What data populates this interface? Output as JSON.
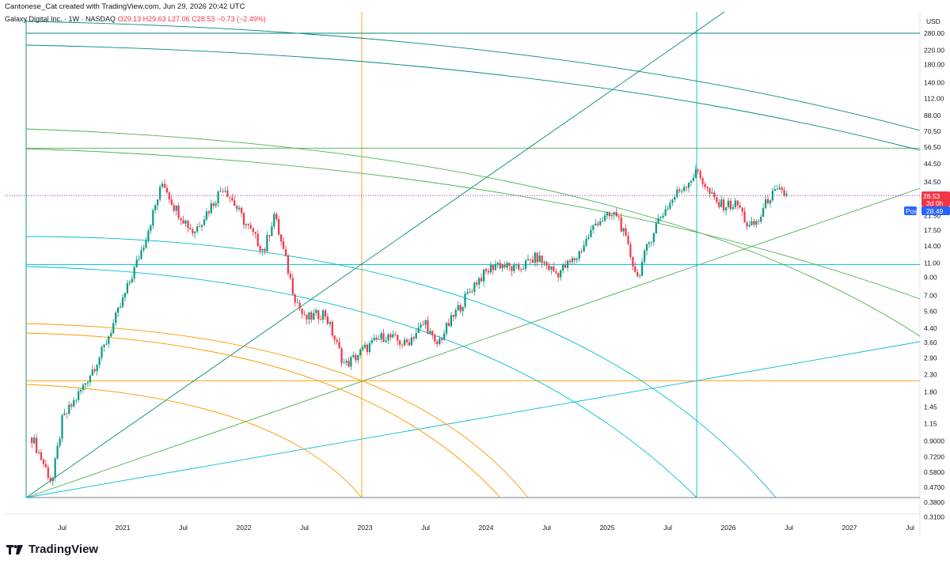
{
  "header": {
    "text": "Cantonese_Cat created with TradingView.com, Jun 29, 2026 20:42 UTC"
  },
  "legend": {
    "symbol": "Galaxy Digital Inc. · 1W · NASDAQ",
    "open": "O29.13",
    "high": "H29.63",
    "low": "L27.06",
    "close": "C28.53",
    "change": "−0.73 (−2.49%)"
  },
  "footer": {
    "brand": "TradingView"
  },
  "colors": {
    "up": "#089981",
    "down": "#f23645",
    "orange": "#ff9800",
    "teal": "#00897b",
    "green": "#4caf50",
    "cyan": "#00bcd4",
    "post": "#2962ff",
    "dotted": "#9c27b0"
  },
  "chart_data": {
    "type": "candlestick",
    "currency": "USD",
    "y_scale": "log",
    "y_ticks": [
      "280.00",
      "220.00",
      "180.00",
      "140.00",
      "112.00",
      "88.00",
      "70.50",
      "56.50",
      "44.50",
      "34.50",
      "28.53",
      "21.50",
      "17.50",
      "14.00",
      "11.00",
      "9.00",
      "7.00",
      "5.60",
      "4.40",
      "3.60",
      "2.90",
      "2.30",
      "1.80",
      "1.45",
      "1.15",
      "0.9000",
      "0.7200",
      "0.5800",
      "0.4700",
      "0.3800",
      "0.3100"
    ],
    "x_ticks": [
      "Jul",
      "2021",
      "Jul",
      "2022",
      "Jul",
      "2023",
      "Jul",
      "2024",
      "Jul",
      "2025",
      "Jul",
      "2026",
      "Jul",
      "2027",
      "Jul"
    ],
    "last_price": {
      "value": "28.53",
      "countdown": "3d 0h"
    },
    "post_market": {
      "label": "Post",
      "value": "28.49"
    },
    "horizontal_levels": [
      280,
      55.5,
      10.8,
      2.1
    ],
    "price_path": [
      [
        "2020-04",
        0.95
      ],
      [
        "2020-06",
        0.5
      ],
      [
        "2020-07",
        1.2
      ],
      [
        "2020-09",
        1.9
      ],
      [
        "2020-11",
        3.2
      ],
      [
        "2021-01",
        6.5
      ],
      [
        "2021-03",
        14
      ],
      [
        "2021-05",
        35
      ],
      [
        "2021-06",
        25
      ],
      [
        "2021-08",
        17
      ],
      [
        "2021-10",
        26
      ],
      [
        "2021-11",
        33
      ],
      [
        "2022-01",
        20
      ],
      [
        "2022-03",
        13
      ],
      [
        "2022-04",
        22
      ],
      [
        "2022-06",
        7
      ],
      [
        "2022-07",
        5
      ],
      [
        "2022-09",
        5.5
      ],
      [
        "2022-11",
        2.6
      ],
      [
        "2023-01",
        3.3
      ],
      [
        "2023-03",
        4.0
      ],
      [
        "2023-05",
        3.5
      ],
      [
        "2023-07",
        4.8
      ],
      [
        "2023-08",
        3.4
      ],
      [
        "2023-10",
        5.5
      ],
      [
        "2023-12",
        8.5
      ],
      [
        "2024-02",
        11
      ],
      [
        "2024-04",
        10
      ],
      [
        "2024-06",
        12
      ],
      [
        "2024-08",
        9.5
      ],
      [
        "2024-10",
        12
      ],
      [
        "2024-12",
        20
      ],
      [
        "2025-02",
        22
      ],
      [
        "2025-04",
        9
      ],
      [
        "2025-05",
        14
      ],
      [
        "2025-06",
        20
      ],
      [
        "2025-08",
        30
      ],
      [
        "2025-10",
        40
      ],
      [
        "2025-11",
        30
      ],
      [
        "2025-12",
        25
      ],
      [
        "2026-02",
        25
      ],
      [
        "2026-03",
        18
      ],
      [
        "2026-04",
        20
      ],
      [
        "2026-05",
        28
      ],
      [
        "2026-06",
        30
      ],
      [
        "2026-06-29",
        28.53
      ]
    ]
  }
}
